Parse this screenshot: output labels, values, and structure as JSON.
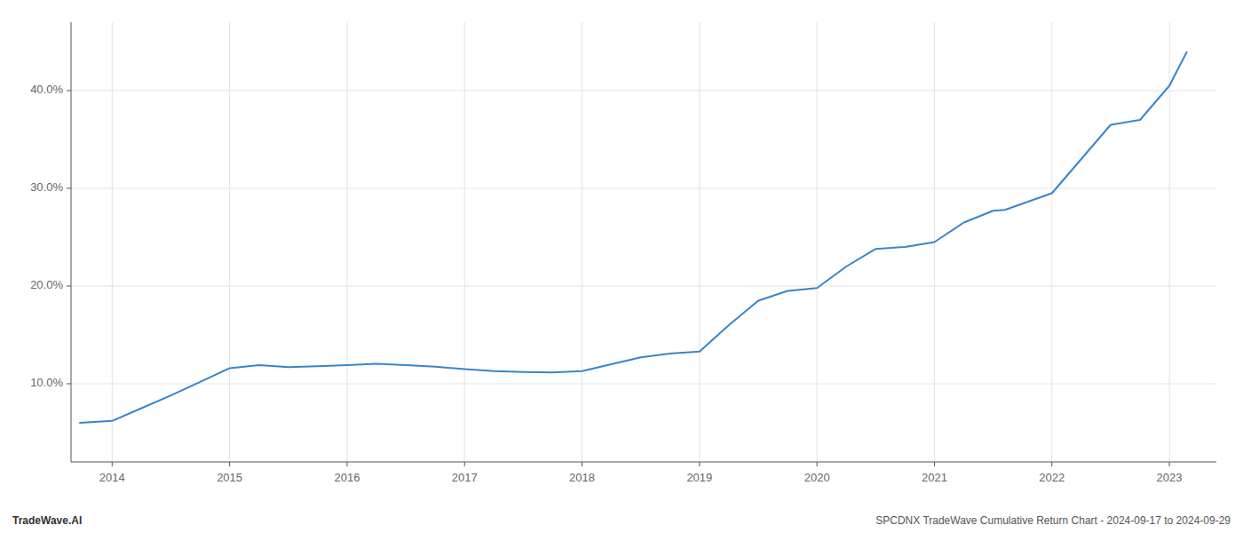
{
  "chart_data": {
    "type": "line",
    "x": [
      2013.72,
      2014.0,
      2014.25,
      2014.5,
      2014.75,
      2015.0,
      2015.25,
      2015.5,
      2015.75,
      2016.0,
      2016.25,
      2016.5,
      2016.75,
      2017.0,
      2017.25,
      2017.5,
      2017.75,
      2018.0,
      2018.25,
      2018.5,
      2018.75,
      2019.0,
      2019.25,
      2019.5,
      2019.75,
      2020.0,
      2020.25,
      2020.5,
      2020.75,
      2021.0,
      2021.25,
      2021.5,
      2021.6,
      2022.0,
      2022.25,
      2022.5,
      2022.75,
      2023.0,
      2023.15
    ],
    "values": [
      6.0,
      6.2,
      7.5,
      8.8,
      10.2,
      11.6,
      11.9,
      11.7,
      11.8,
      11.9,
      12.05,
      11.9,
      11.75,
      11.5,
      11.3,
      11.2,
      11.15,
      11.3,
      12.0,
      12.7,
      13.1,
      13.3,
      16.0,
      18.5,
      19.5,
      19.8,
      22.0,
      23.8,
      24.0,
      24.5,
      26.5,
      27.7,
      27.8,
      29.5,
      33.0,
      36.5,
      37.0,
      40.5,
      44.0
    ],
    "color": "#3a85c8",
    "xlim": [
      2013.65,
      2023.4
    ],
    "xticks": [
      2014,
      2015,
      2016,
      2017,
      2018,
      2019,
      2020,
      2021,
      2022,
      2023
    ],
    "ylim": [
      2.0,
      47.0
    ],
    "yticks": [
      {
        "value": 10.0,
        "label": "10.0%"
      },
      {
        "value": 20.0,
        "label": "20.0%"
      },
      {
        "value": 30.0,
        "label": "30.0%"
      },
      {
        "value": 40.0,
        "label": "40.0%"
      }
    ],
    "grid": true,
    "annotations": [
      "TradeWave.AI",
      "SPCDNX TradeWave Cumulative Return Chart - 2024-09-17 to 2024-09-29"
    ]
  }
}
